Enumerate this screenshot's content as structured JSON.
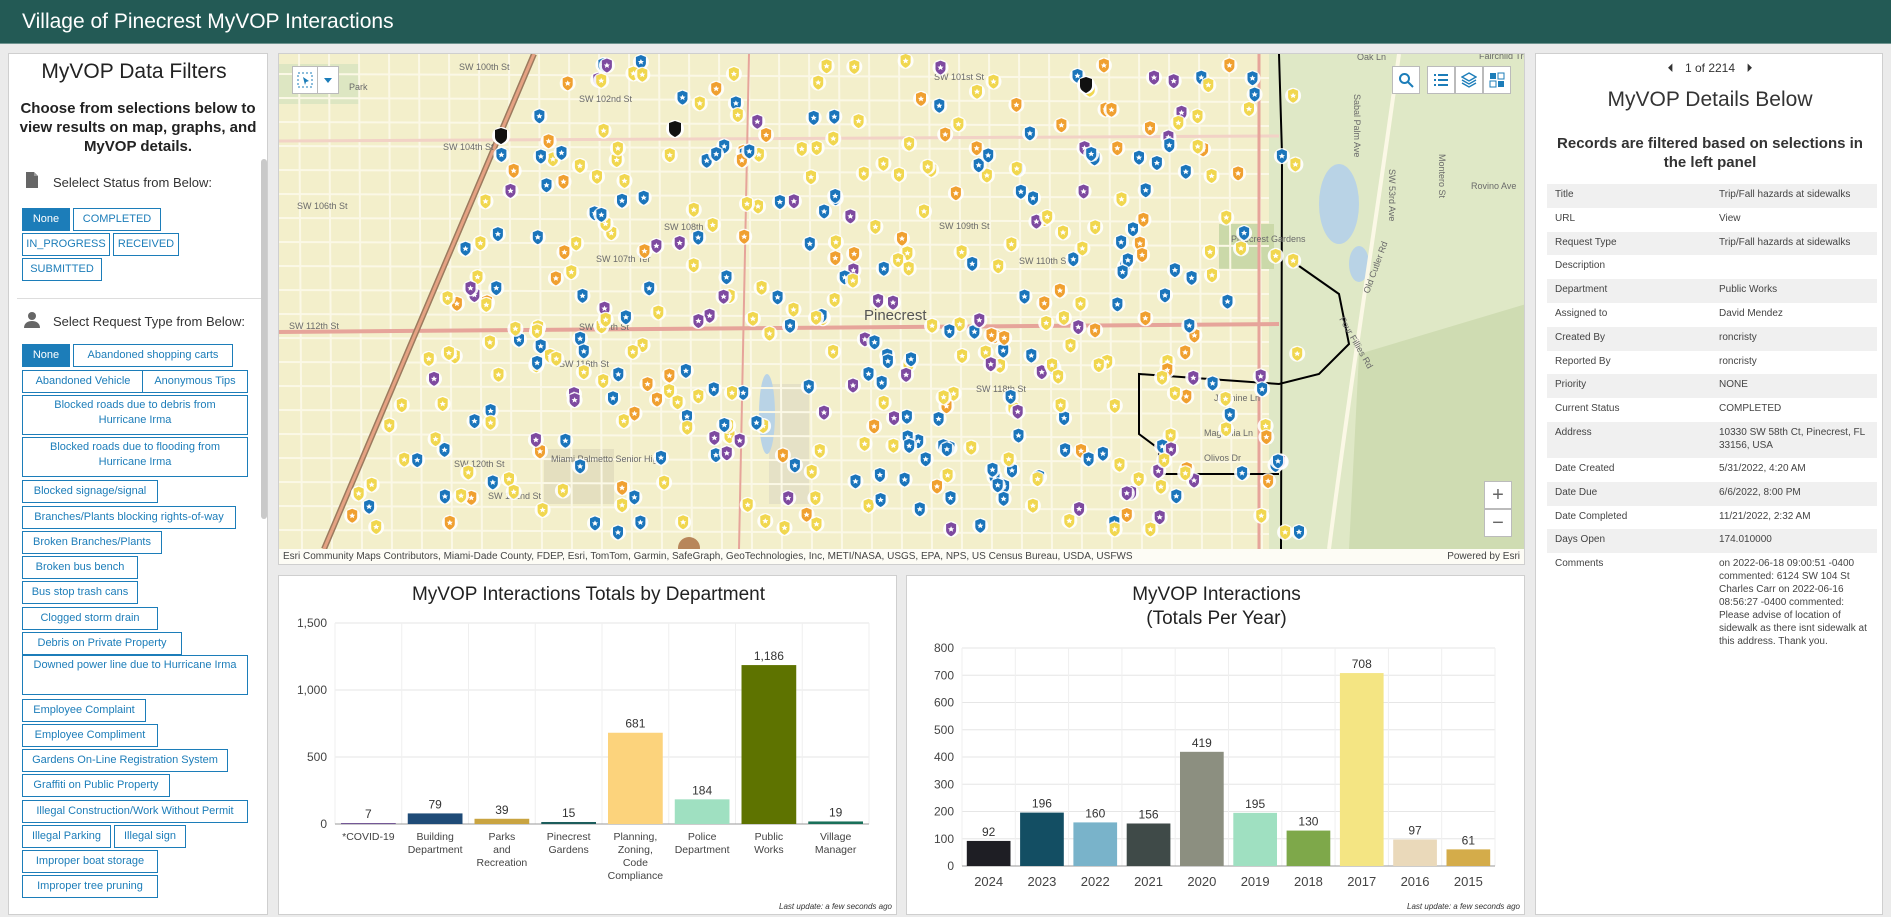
{
  "header": {
    "title": "Village of Pinecrest MyVOP Interactions"
  },
  "filters": {
    "title": "MyVOP Data Filters",
    "subtitle": "Choose from selections below to view results on map, graphs, and MyVOP details.",
    "status": {
      "label": "Selelect Status from Below:",
      "icon": "document-icon",
      "options": [
        "None",
        "COMPLETED",
        "IN_PROGRESS",
        "RECEIVED",
        "SUBMITTED"
      ],
      "selected": "None"
    },
    "request_type": {
      "label": "Select Request Type from Below:",
      "icon": "person-icon",
      "options": [
        "None",
        "Abandoned shopping carts",
        "Abandoned Vehicle",
        "Anonymous Tips",
        "Blocked roads due to debris from Hurricane Irma",
        "Blocked roads due to flooding from Hurricane Irma",
        "Blocked signage/signal",
        "Branches/Plants blocking rights-of-way",
        "Broken Branches/Plants",
        "Broken bus bench",
        "Bus stop trash cans",
        "Clogged storm drain",
        "Debris on Private Property",
        "Downed power line due to Hurricane Irma",
        "Employee Complaint",
        "Employee Compliment",
        "Gardens On-Line Registration System",
        "Graffiti on Public Property",
        "Illegal Construction/Work Without Permit",
        "Illegal Parking",
        "Illegal sign",
        "Improper boat storage",
        "Improper tree pruning"
      ],
      "selected": "None"
    }
  },
  "map": {
    "place_label": "Pinecrest",
    "labels": [
      "SW 100th St",
      "SW 101st St",
      "SW 102nd St",
      "SW 104th St",
      "SW 106th St",
      "SW 107th Ter",
      "SW 108th St",
      "SW 109th St",
      "SW 110th St",
      "SW 112th St",
      "SW 114th St",
      "SW 116th St",
      "SW 118th St",
      "SW 120th St",
      "SW 122nd St",
      "Jasmine Ln",
      "Magnolia Ln",
      "Olivos Dr",
      "Oak Ln",
      "Sabal Palm Ave",
      "Old Cutler Rd",
      "Four Fillies Rd",
      "Rovino Ave",
      "Montero St",
      "SW 53rd Ave",
      "Miami Palmetto Senior High",
      "Pinecrest Gardens",
      "Fairchild Tropical Garden",
      "Park"
    ],
    "attribution": "Esri Community Maps Contributors, Miami-Dade County, FDEP, Esri, TomTom, Garmin, SafeGraph, GeoTechnologies, Inc, METI/NASA, USGS, EPA, NPS, US Census Bureau, USDA, USFWS",
    "powered": "Powered by Esri",
    "zoom_in": "+",
    "zoom_out": "−",
    "tools": [
      "search-icon",
      "list-icon",
      "layers-icon",
      "basemap-gallery-icon"
    ],
    "marker_colors": {
      "police": "#1b75bb",
      "public_works": "#f1d74f",
      "planning": "#f0a030",
      "other": "#7e4aa0",
      "parks": "#6aa84f",
      "black": "#111111"
    }
  },
  "dept_chart": {
    "title": "MyVOP Interactions Totals by Department",
    "last_update": "Last update: a few seconds ago",
    "chart_data": {
      "type": "bar",
      "categories": [
        "*COVID-19",
        "Building Department",
        "Parks and Recreation",
        "Pinecrest Gardens",
        "Planning, Zoning, Code Compliance",
        "Police Department",
        "Public Works",
        "Village Manager"
      ],
      "category_lines": [
        [
          "*COVID-19"
        ],
        [
          "Building",
          "Department"
        ],
        [
          "Parks",
          "and",
          "Recreation"
        ],
        [
          "Pinecrest",
          "Gardens"
        ],
        [
          "Planning,",
          "Zoning,",
          "Code",
          "Compliance"
        ],
        [
          "Police",
          "Department"
        ],
        [
          "Public",
          "Works"
        ],
        [
          "Village",
          "Manager"
        ]
      ],
      "values": [
        7,
        79,
        39,
        15,
        681,
        184,
        1186,
        19
      ],
      "data_labels": [
        "7",
        "79",
        "39",
        "15",
        "681",
        "184",
        "1,186",
        "19"
      ],
      "colors": [
        "#6b4d8f",
        "#1f4b77",
        "#c9a441",
        "#1c5d5c",
        "#fcd37c",
        "#9fe0c1",
        "#5e7300",
        "#19705a"
      ],
      "ylim": [
        0,
        1500
      ],
      "yticks": [
        0,
        500,
        1000,
        1500
      ],
      "ytick_labels": [
        "0",
        "500",
        "1,000",
        "1,500"
      ],
      "grid": true
    }
  },
  "year_chart": {
    "title_line1": "MyVOP Interactions",
    "title_line2": "(Totals Per Year)",
    "last_update": "Last update: a few seconds ago",
    "chart_data": {
      "type": "bar",
      "categories": [
        "2024",
        "2023",
        "2022",
        "2021",
        "2020",
        "2019",
        "2018",
        "2017",
        "2016",
        "2015"
      ],
      "values": [
        92,
        196,
        160,
        156,
        419,
        195,
        130,
        708,
        97,
        61
      ],
      "colors": [
        "#1e1e24",
        "#134e63",
        "#79b3ca",
        "#3f4a48",
        "#8c8f80",
        "#9fe0c1",
        "#7ea84a",
        "#f4e583",
        "#ead9ba",
        "#d4ac4a"
      ],
      "ylim": [
        0,
        800
      ],
      "yticks": [
        0,
        100,
        200,
        300,
        400,
        500,
        600,
        700,
        800
      ],
      "grid": true
    }
  },
  "details": {
    "pager": "1 of 2214",
    "prev": "⏴",
    "next": "⏵",
    "title": "MyVOP Details Below",
    "subtitle": "Records are filtered based on selections in the left panel",
    "fields": [
      {
        "k": "Title",
        "v": "Trip/Fall hazards at sidewalks"
      },
      {
        "k": "URL",
        "v": "View"
      },
      {
        "k": "Request Type",
        "v": "Trip/Fall hazards at sidewalks"
      },
      {
        "k": "Description",
        "v": ""
      },
      {
        "k": "Department",
        "v": "Public Works"
      },
      {
        "k": "Assigned to",
        "v": "David Mendez"
      },
      {
        "k": "Created By",
        "v": "roncristy"
      },
      {
        "k": "Reported By",
        "v": "roncristy"
      },
      {
        "k": "Priority",
        "v": "NONE"
      },
      {
        "k": "Current Status",
        "v": "COMPLETED"
      },
      {
        "k": "Address",
        "v": "10330 SW 58th Ct, Pinecrest, FL 33156, USA"
      },
      {
        "k": "Date Created",
        "v": "5/31/2022, 4:20 AM"
      },
      {
        "k": "Date Due",
        "v": "6/6/2022, 8:00 PM"
      },
      {
        "k": "Date Completed",
        "v": "11/21/2022, 2:32 AM"
      },
      {
        "k": "Days Open",
        "v": "174.010000"
      },
      {
        "k": "Comments",
        "v": "on 2022-06-18 09:00:51 -0400 commented: 6124 SW 104 St Charles Carr on 2022-06-16 08:56:27 -0400 commented: Please advise of location of sidewalk as there isnt sidewalk at this address. Thank you."
      }
    ]
  }
}
